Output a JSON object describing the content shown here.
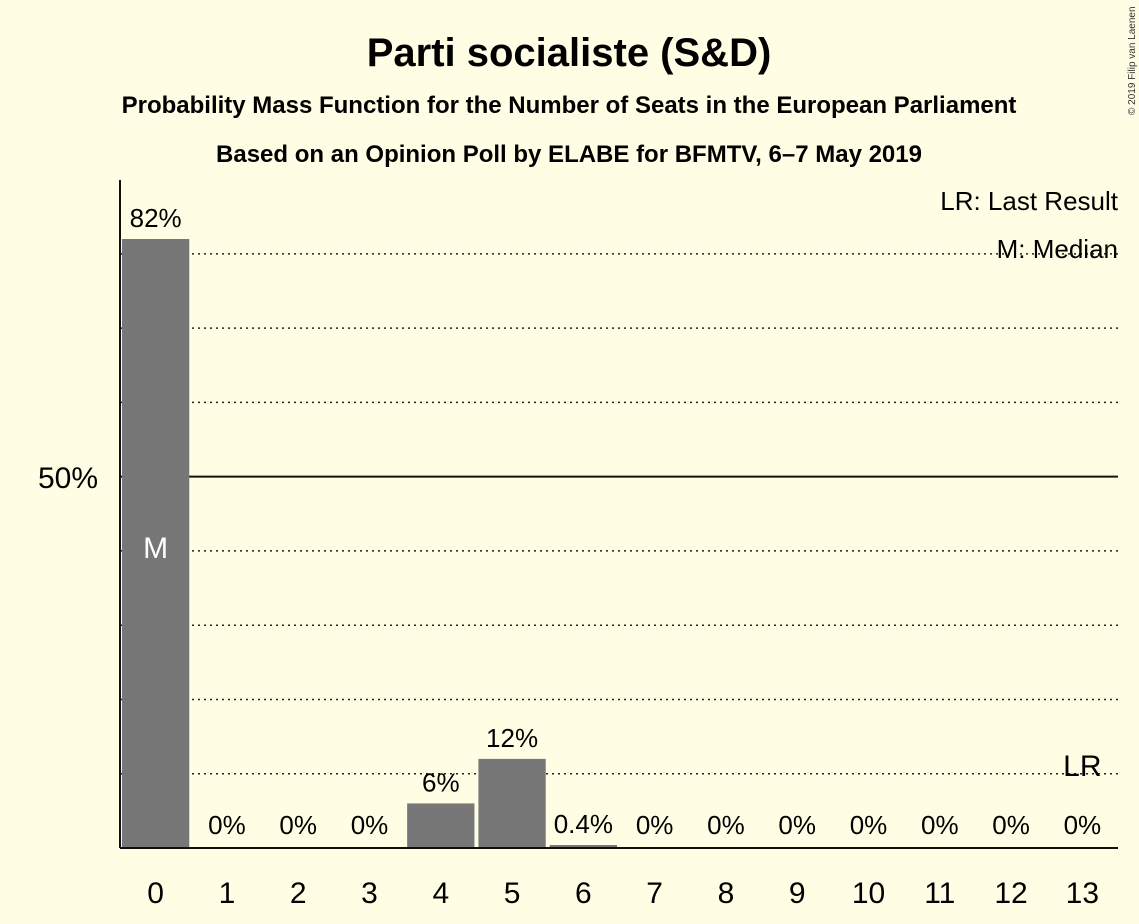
{
  "chart_data": {
    "type": "bar",
    "title": "Parti socialiste (S&D)",
    "subtitle": "Probability Mass Function for the Number of Seats in the European Parliament",
    "subtitle2": "Based on an Opinion Poll by ELABE for BFMTV, 6–7 May 2019",
    "copyright": "© 2019 Filip van Laenen",
    "categories": [
      "0",
      "1",
      "2",
      "3",
      "4",
      "5",
      "6",
      "7",
      "8",
      "9",
      "10",
      "11",
      "12",
      "13"
    ],
    "values": [
      82,
      0,
      0,
      0,
      6,
      12,
      0.4,
      0,
      0,
      0,
      0,
      0,
      0,
      0
    ],
    "value_labels": [
      "82%",
      "0%",
      "0%",
      "0%",
      "6%",
      "12%",
      "0.4%",
      "0%",
      "0%",
      "0%",
      "0%",
      "0%",
      "0%",
      "0%"
    ],
    "ylim": [
      0,
      90
    ],
    "y_tick_label": "50%",
    "y_tick_value": 50,
    "gridlines": [
      10,
      20,
      30,
      40,
      60,
      70,
      80
    ],
    "median_index": 0,
    "median_marker": "M",
    "last_result_index": 13,
    "last_result_marker": "LR",
    "legend": [
      "LR: Last Result",
      "M: Median"
    ],
    "colors": {
      "bar": "#777777",
      "background": "#FFFEE5",
      "text": "#111111"
    }
  }
}
